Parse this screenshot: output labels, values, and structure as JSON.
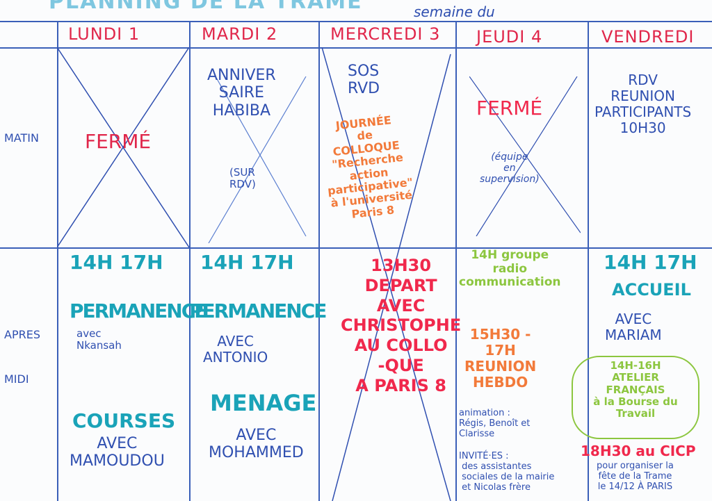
{
  "title": "PLANNING DE LA TRAME",
  "week_label": "semaine du",
  "days": [
    "LUNDI 1",
    "MARDI 2",
    "MERCREDI 3",
    "JEUDI 4",
    "VENDREDI"
  ],
  "rows": [
    "MATIN",
    "APRES MIDI"
  ],
  "matin": {
    "lundi": "FERMÉ",
    "mardi": "ANNIVER\nSAIRE\nHABIBA",
    "mardi_note": "(SUR\nRDV)",
    "mercredi": "SOS\nRVD",
    "mercredi_event": "JOURNÉE\nde\nCOLLOQUE\n\"Recherche\naction\nparticipative\"\nà l'université\nParis 8",
    "jeudi": "FERMÉ",
    "jeudi_note": "(équipe\nen\nsupervision)",
    "vendredi": "RDV\nREUNION\nPARTICIPANTS\n10H30"
  },
  "apres_midi": {
    "lundi_time": "14H 17H",
    "lundi_1": "PERMANENCE",
    "lundi_1_note": "avec\nNkansah",
    "lundi_2": "COURSES",
    "lundi_2_note": "AVEC\nMAMOUDOU",
    "mardi_time": "14H 17H",
    "mardi_1": "PERMANENCE",
    "mardi_1_note": "AVEC\nANTONIO",
    "mardi_2": "MENAGE",
    "mardi_2_note": "AVEC\nMOHAMMED",
    "mercredi": "13H30\nDEPART\nAVEC\nCHRISTOPHE\nAU COLLO\n-QUE\nA PARIS 8",
    "jeudi_1": "14H groupe\nradio\ncommunication",
    "jeudi_2": "15H30 -\n17H\nREUNION\nHEBDO",
    "jeudi_2_note": "animation :\nRégis, Benoît et\nClarisse",
    "jeudi_3": "INVITÉ·ES :\n des assistantes\n sociales de la mairie\n et Nicolas frère",
    "vendredi_time": "14H 17H",
    "vendredi_1": "ACCUEIL",
    "vendredi_1_note": "AVEC\nMARIAM",
    "vendredi_2": "14H-16H\nATELIER\nFRANÇAIS\nà la Bourse du\nTravail",
    "vendredi_3": "18H30 au CICP",
    "vendredi_3_note": "pour organiser la\nfête de la Trame\nle 14/12 À PARIS"
  }
}
